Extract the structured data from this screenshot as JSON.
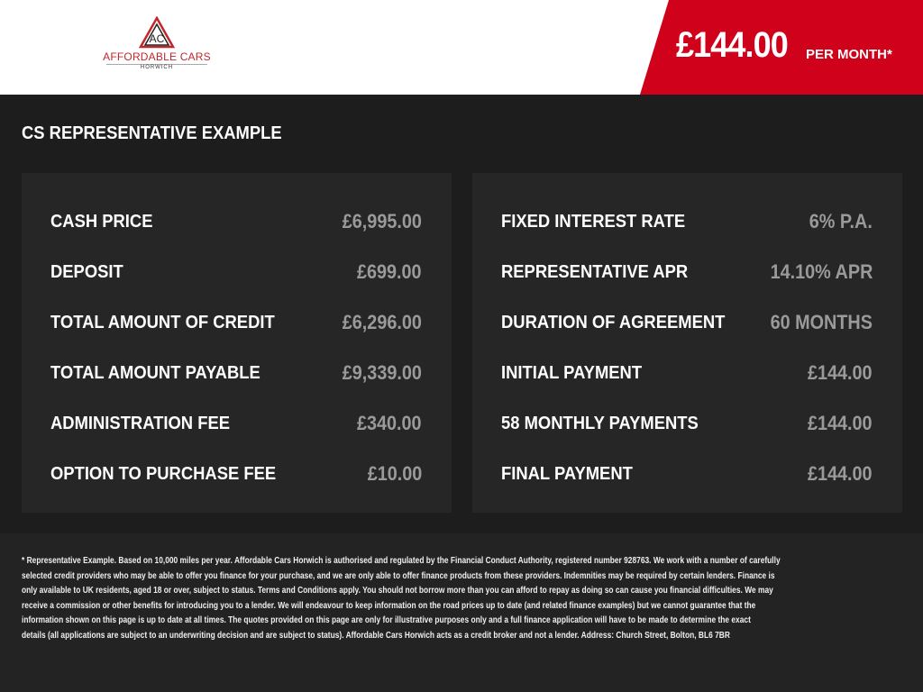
{
  "header": {
    "logo": {
      "name": "AFFORDABLE CARS",
      "sub": "HORWICH",
      "mark": "AC"
    },
    "price": "£144.00",
    "per_month": "PER MONTH*",
    "brand_color": "#d0021b"
  },
  "title": "CS REPRESENTATIVE EXAMPLE",
  "left": [
    {
      "label": "CASH PRICE",
      "value": "£6,995.00"
    },
    {
      "label": "DEPOSIT",
      "value": "£699.00"
    },
    {
      "label": "TOTAL AMOUNT OF CREDIT",
      "value": "£6,296.00"
    },
    {
      "label": "TOTAL AMOUNT PAYABLE",
      "value": "£9,339.00"
    },
    {
      "label": "ADMINISTRATION FEE",
      "value": "£340.00"
    },
    {
      "label": "OPTION TO PURCHASE FEE",
      "value": "£10.00"
    }
  ],
  "right": [
    {
      "label": "FIXED INTEREST RATE",
      "value": "6% P.A."
    },
    {
      "label": "REPRESENTATIVE APR",
      "value": "14.10% APR"
    },
    {
      "label": "DURATION OF AGREEMENT",
      "value": "60 MONTHS"
    },
    {
      "label": "INITIAL PAYMENT",
      "value": "£144.00"
    },
    {
      "label": "58 MONTHLY PAYMENTS",
      "value": "£144.00"
    },
    {
      "label": "FINAL PAYMENT",
      "value": "£144.00"
    }
  ],
  "footer": [
    "* Representative Example. Based on 10,000 miles per year. Affordable Cars Horwich is authorised and regulated by the Financial Conduct Authority, registered number 928763. We work with a number of carefully",
    "selected credit providers who may be able to offer you finance for your purchase, and we are only able to offer finance products from these providers. Indemnities may be required by certain lenders. Finance is",
    "only available to UK residents, aged 18 or over, subject to status. Terms and Conditions apply. You should not borrow more than you can afford to repay as doing so can cause you financial difficulties. We may",
    "receive a commission or other benefits for introducing you to a lender. We will endeavour to keep information on the road prices up to date (and related finance examples) but we cannot guarantee that the",
    "information shown on this page is up to date at all times. The quotes provided on this page are only for illustrative purposes only and a full finance application will have to be made to determine the exact",
    "details (all applications are subject to an underwriting decision and are subject to status). Affordable Cars Horwich acts as a credit broker and not a lender. Address: Church Street, Bolton, BL6 7BR"
  ]
}
